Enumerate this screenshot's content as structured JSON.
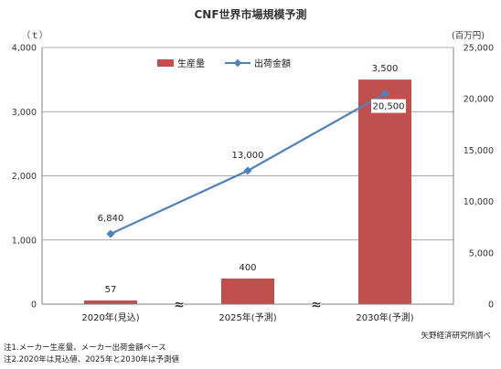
{
  "chart_data": {
    "type": "bar+line",
    "title": "CNF世界市場規模予測",
    "categories": [
      "2020年(見込)",
      "2025年(予測)",
      "2030年(予測)"
    ],
    "series": [
      {
        "name": "生産量",
        "type": "bar",
        "axis": "left",
        "values": [
          57,
          400,
          3500
        ],
        "labels": [
          "57",
          "400",
          "3,500"
        ],
        "color": "#c0504d"
      },
      {
        "name": "出荷金額",
        "type": "line",
        "axis": "right",
        "values": [
          6840,
          13000,
          20500
        ],
        "labels": [
          "6,840",
          "13,000",
          "20,500"
        ],
        "color": "#4f81bd"
      }
    ],
    "y_left": {
      "unit": "（ｔ）",
      "min": 0,
      "max": 4000,
      "ticks": [
        0,
        1000,
        2000,
        3000,
        4000
      ],
      "tick_labels": [
        "0",
        "1,000",
        "2,000",
        "3,000",
        "4,000"
      ]
    },
    "y_right": {
      "unit": "(百万円)",
      "min": 0,
      "max": 25000,
      "ticks": [
        0,
        5000,
        10000,
        15000,
        20000,
        25000
      ],
      "tick_labels": [
        "0",
        "5,000",
        "10,000",
        "15,000",
        "20,000",
        "25,000"
      ]
    },
    "axis_break_symbol": "≈",
    "legend_position": "top",
    "grid": true,
    "notes": [
      "注1.メーカー生産量、メーカー出荷金額ベース",
      "注2.2020年は見込値、2025年と2030年は予測値"
    ],
    "source": "矢野経済研究所調べ"
  }
}
